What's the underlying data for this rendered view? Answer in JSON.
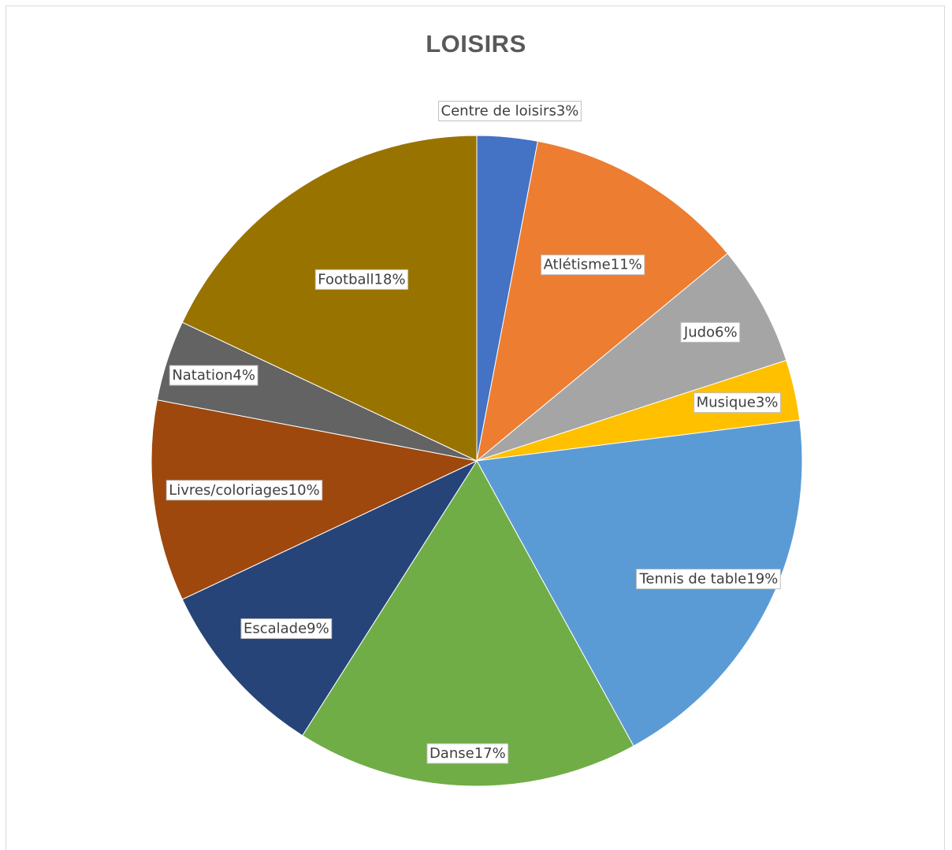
{
  "chart_data": {
    "type": "pie",
    "title": "LOISIRS",
    "slices": [
      {
        "label": "Centre de loisirs",
        "value": 3,
        "display": "Centre de loisirs3%",
        "color": "#4472C4"
      },
      {
        "label": "Atlétisme",
        "value": 11,
        "display": "Atlétisme11%",
        "color": "#ED7D31"
      },
      {
        "label": "Judo",
        "value": 6,
        "display": "Judo6%",
        "color": "#A5A5A5"
      },
      {
        "label": "Musique",
        "value": 3,
        "display": "Musique3%",
        "color": "#FFC000"
      },
      {
        "label": "Tennis de table",
        "value": 19,
        "display": "Tennis de table19%",
        "color": "#5B9BD5"
      },
      {
        "label": "Danse",
        "value": 17,
        "display": "Danse17%",
        "color": "#70AD47"
      },
      {
        "label": "Escalade",
        "value": 9,
        "display": "Escalade9%",
        "color": "#264478"
      },
      {
        "label": "Livres/coloriages",
        "value": 10,
        "display": "Livres/coloriages10%",
        "color": "#9E480E"
      },
      {
        "label": "Natation",
        "value": 4,
        "display": "Natation4%",
        "color": "#636363"
      },
      {
        "label": "Football",
        "value": 18,
        "display": "Football18%",
        "color": "#997300"
      }
    ]
  }
}
